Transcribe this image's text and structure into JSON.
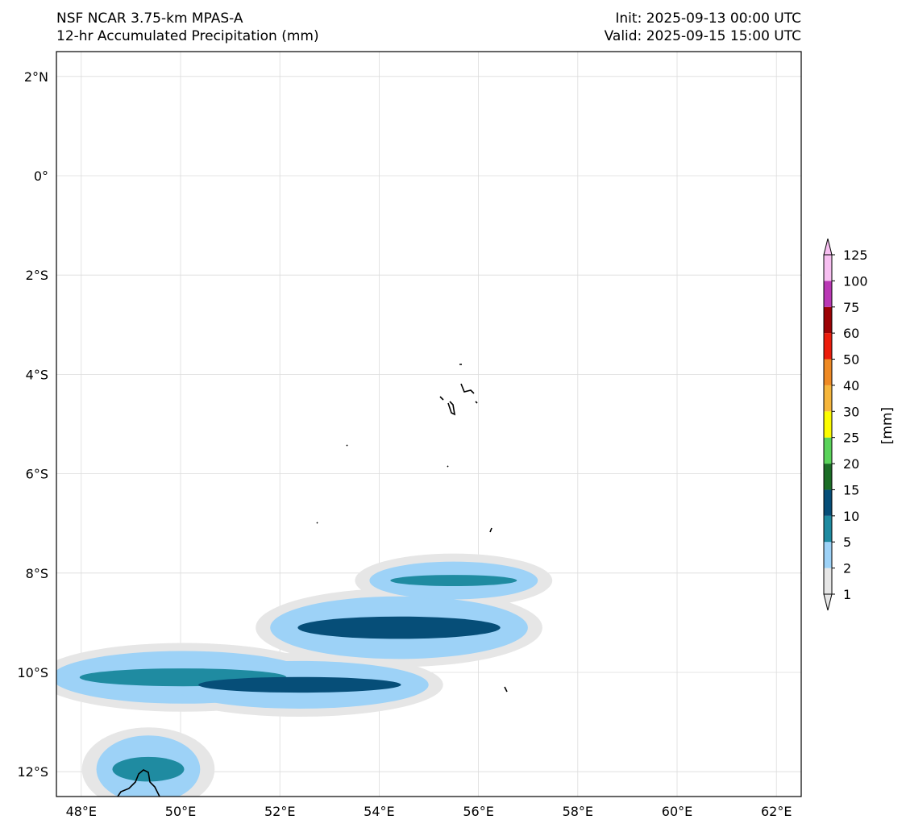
{
  "header": {
    "model": "NSF NCAR 3.75-km MPAS-A",
    "field": "12-hr Accumulated Precipitation (mm)",
    "init": "Init: 2025-09-13 00:00 UTC",
    "valid": "Valid: 2025-09-15 15:00 UTC"
  },
  "map": {
    "lon_range": [
      47.5,
      62.5
    ],
    "lat_range": [
      -12.5,
      2.5
    ],
    "lon_ticks": [
      "48°E",
      "50°E",
      "52°E",
      "54°E",
      "56°E",
      "58°E",
      "60°E",
      "62°E"
    ],
    "lat_ticks": [
      "2°N",
      "0°",
      "2°S",
      "4°S",
      "6°S",
      "8°S",
      "10°S",
      "12°S"
    ],
    "gridlines": true,
    "precip_bands": [
      {
        "lon": [
          47.6,
          52.5
        ],
        "lat": [
          -10.5,
          -9.7
        ],
        "level": 5
      },
      {
        "lon": [
          50.0,
          54.8
        ],
        "lat": [
          -10.6,
          -9.9
        ],
        "level": 10
      },
      {
        "lon": [
          52.0,
          56.8
        ],
        "lat": [
          -9.6,
          -8.6
        ],
        "level": 10
      },
      {
        "lon": [
          54.0,
          57.0
        ],
        "lat": [
          -8.4,
          -7.9
        ],
        "level": 5
      },
      {
        "lon": [
          48.5,
          50.2
        ],
        "lat": [
          -12.5,
          -11.4
        ],
        "level": 5
      }
    ]
  },
  "colorbar": {
    "label": "[mm]",
    "levels": [
      "1",
      "2",
      "5",
      "10",
      "15",
      "20",
      "25",
      "30",
      "40",
      "50",
      "60",
      "75",
      "100",
      "125"
    ],
    "colors": [
      "#e6e6e6",
      "#9dd2f7",
      "#1f8ba1",
      "#064e78",
      "#1b6d26",
      "#5ad35a",
      "#fcfc00",
      "#f6b63c",
      "#ef8a24",
      "#ec1c0b",
      "#9c0205",
      "#ba38b5",
      "#f7bff1"
    ]
  }
}
